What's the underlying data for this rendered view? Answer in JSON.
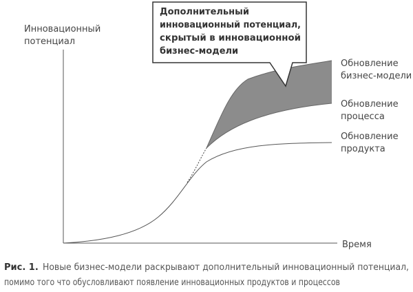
{
  "axes": {
    "y_label_lines": [
      "Инновационный",
      "потенциал"
    ],
    "x_label": "Время"
  },
  "callout": {
    "lines": [
      "Дополнительный",
      "инновационный потенциал,",
      "скрытый в инновационной",
      "бизнес-модели"
    ]
  },
  "curves": [
    {
      "label_lines": [
        "Обновление",
        "бизнес-модели"
      ]
    },
    {
      "label_lines": [
        "Обновление",
        "процесса"
      ]
    },
    {
      "label_lines": [
        "Обновление",
        "продукта"
      ]
    }
  ],
  "caption": {
    "label": "Рис. 1.",
    "lines": [
      "Новые бизнес-модели раскрывают дополнительный инновационный потенциал,",
      "помимо того что обусловливают появление инновационных продуктов и процессов"
    ]
  }
}
